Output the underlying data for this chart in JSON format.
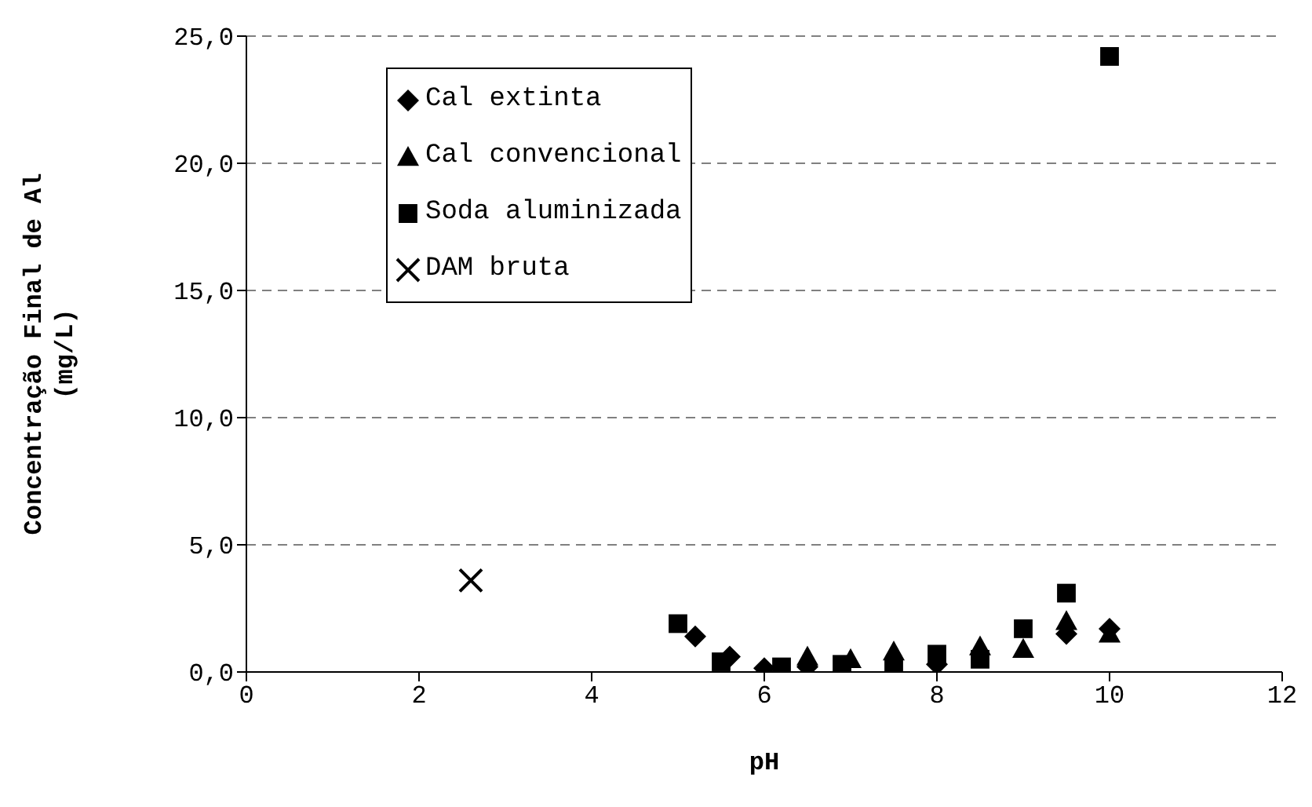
{
  "chart_data": {
    "type": "scatter",
    "xlabel": "pH",
    "ylabel": "Concentração Final de Al\n(mg/L)",
    "xlim": [
      0,
      12
    ],
    "xticks": [
      0,
      2,
      4,
      6,
      8,
      10,
      12
    ],
    "ylim": [
      0,
      25
    ],
    "yticks": [
      {
        "value": 0,
        "label": "0,0"
      },
      {
        "value": 5,
        "label": "5,0"
      },
      {
        "value": 10,
        "label": "10,0"
      },
      {
        "value": 15,
        "label": "15,0"
      },
      {
        "value": 20,
        "label": "20,0"
      },
      {
        "value": 25,
        "label": "25,0"
      }
    ],
    "grid": "y",
    "legend": "top left",
    "series": [
      {
        "name": "Cal extinta",
        "color": "#000000",
        "marker": "diamond",
        "x": [
          5.2,
          5.6,
          6.0,
          6.5,
          7.0,
          8.0,
          9.5,
          10.0
        ],
        "values": [
          1.4,
          0.6,
          0.15,
          0.2,
          null,
          0.3,
          1.5,
          1.7
        ]
      },
      {
        "name": "Cal convencional",
        "color": "#000000",
        "marker": "triangle",
        "x": [
          6.5,
          7.0,
          7.5,
          8.5,
          9.0,
          9.5,
          10.0
        ],
        "values": [
          0.6,
          0.5,
          0.8,
          1.0,
          0.9,
          2.0,
          1.5
        ]
      },
      {
        "name": "Soda aluminizada",
        "color": "#000000",
        "marker": "square",
        "x": [
          5.0,
          5.5,
          6.2,
          6.9,
          7.5,
          8.0,
          8.5,
          9.0,
          9.5,
          10.0
        ],
        "values": [
          1.9,
          0.4,
          0.2,
          0.3,
          0.15,
          0.7,
          0.5,
          1.7,
          3.1,
          24.2
        ]
      },
      {
        "name": "DAM bruta",
        "color": "#000000",
        "marker": "cross",
        "x": [
          2.6
        ],
        "values": [
          3.6
        ]
      }
    ]
  }
}
